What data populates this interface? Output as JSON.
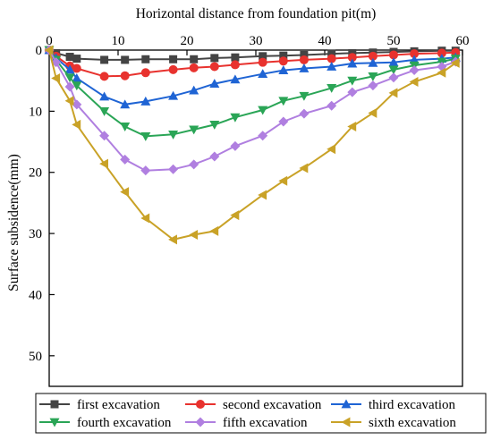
{
  "chart_data": {
    "type": "line",
    "title": "",
    "xlabel": "Horizontal distance from foundation pit(m)",
    "ylabel": "Surface subsidence(mm)",
    "xlim": [
      0,
      60
    ],
    "ylim": [
      0,
      55
    ],
    "y_inverted": true,
    "x_axis_position": "top",
    "xticks": [
      0,
      10,
      20,
      30,
      40,
      50,
      60
    ],
    "yticks": [
      0,
      10,
      20,
      30,
      40,
      50
    ],
    "grid": false,
    "legend_position": "bottom",
    "series": [
      {
        "name": "first excavation",
        "color": "#444444",
        "marker": "square",
        "x": [
          0,
          1,
          3,
          4,
          8,
          11,
          14,
          18,
          21,
          24,
          27,
          31,
          34,
          37,
          41,
          44,
          47,
          50,
          53,
          57,
          59
        ],
        "y": [
          0,
          0.5,
          1.1,
          1.4,
          1.6,
          1.6,
          1.5,
          1.5,
          1.5,
          1.3,
          1.2,
          1.0,
          0.9,
          0.8,
          0.6,
          0.5,
          0.4,
          0.3,
          0.2,
          0.1,
          0.1
        ]
      },
      {
        "name": "second excavation",
        "color": "#e8322e",
        "marker": "circle",
        "x": [
          0,
          1,
          3,
          4,
          8,
          11,
          14,
          18,
          21,
          24,
          27,
          31,
          34,
          37,
          41,
          44,
          47,
          50,
          53,
          57,
          59
        ],
        "y": [
          0,
          1.0,
          2.6,
          3.0,
          4.3,
          4.2,
          3.7,
          3.2,
          2.9,
          2.7,
          2.4,
          2.0,
          1.8,
          1.6,
          1.4,
          1.2,
          1.0,
          0.8,
          0.6,
          0.5,
          0.4
        ]
      },
      {
        "name": "third excavation",
        "color": "#1f64d4",
        "marker": "triangle-up",
        "x": [
          0,
          1,
          3,
          4,
          8,
          11,
          14,
          18,
          21,
          24,
          27,
          31,
          34,
          37,
          41,
          44,
          47,
          50,
          53,
          57,
          59
        ],
        "y": [
          0,
          1.3,
          3.2,
          4.6,
          7.6,
          8.9,
          8.4,
          7.5,
          6.6,
          5.5,
          4.8,
          3.9,
          3.3,
          3.0,
          2.7,
          2.2,
          2.1,
          2.0,
          1.6,
          1.4,
          1.2
        ]
      },
      {
        "name": "fourth excavation",
        "color": "#2aa556",
        "marker": "triangle-down",
        "x": [
          0,
          1,
          3,
          4,
          8,
          11,
          14,
          18,
          21,
          24,
          27,
          31,
          34,
          37,
          41,
          44,
          47,
          50,
          53,
          57,
          59
        ],
        "y": [
          0,
          1.6,
          4.5,
          5.8,
          10.0,
          12.5,
          14.1,
          13.8,
          13.0,
          12.2,
          11.0,
          9.8,
          8.3,
          7.5,
          6.2,
          5.0,
          4.3,
          3.2,
          2.5,
          1.9,
          1.4
        ]
      },
      {
        "name": "fifth excavation",
        "color": "#b07fe0",
        "marker": "diamond",
        "x": [
          0,
          1,
          3,
          4,
          8,
          11,
          14,
          18,
          21,
          24,
          27,
          31,
          34,
          37,
          41,
          44,
          47,
          50,
          53,
          57,
          59
        ],
        "y": [
          0,
          2.0,
          6.0,
          8.9,
          14.0,
          17.9,
          19.7,
          19.5,
          18.7,
          17.4,
          15.7,
          14.0,
          11.7,
          10.4,
          9.1,
          6.9,
          5.8,
          4.5,
          3.3,
          2.7,
          1.9
        ]
      },
      {
        "name": "sixth excavation",
        "color": "#c9a227",
        "marker": "triangle-left",
        "x": [
          0,
          1,
          3,
          4,
          8,
          11,
          14,
          18,
          21,
          24,
          27,
          31,
          34,
          37,
          41,
          44,
          47,
          50,
          53,
          57,
          59
        ],
        "y": [
          0,
          4.6,
          8.3,
          12.2,
          18.6,
          23.2,
          27.5,
          31.0,
          30.2,
          29.6,
          27.0,
          23.7,
          21.4,
          19.3,
          16.2,
          12.5,
          10.3,
          7.0,
          5.2,
          3.7,
          2.1
        ]
      }
    ]
  }
}
